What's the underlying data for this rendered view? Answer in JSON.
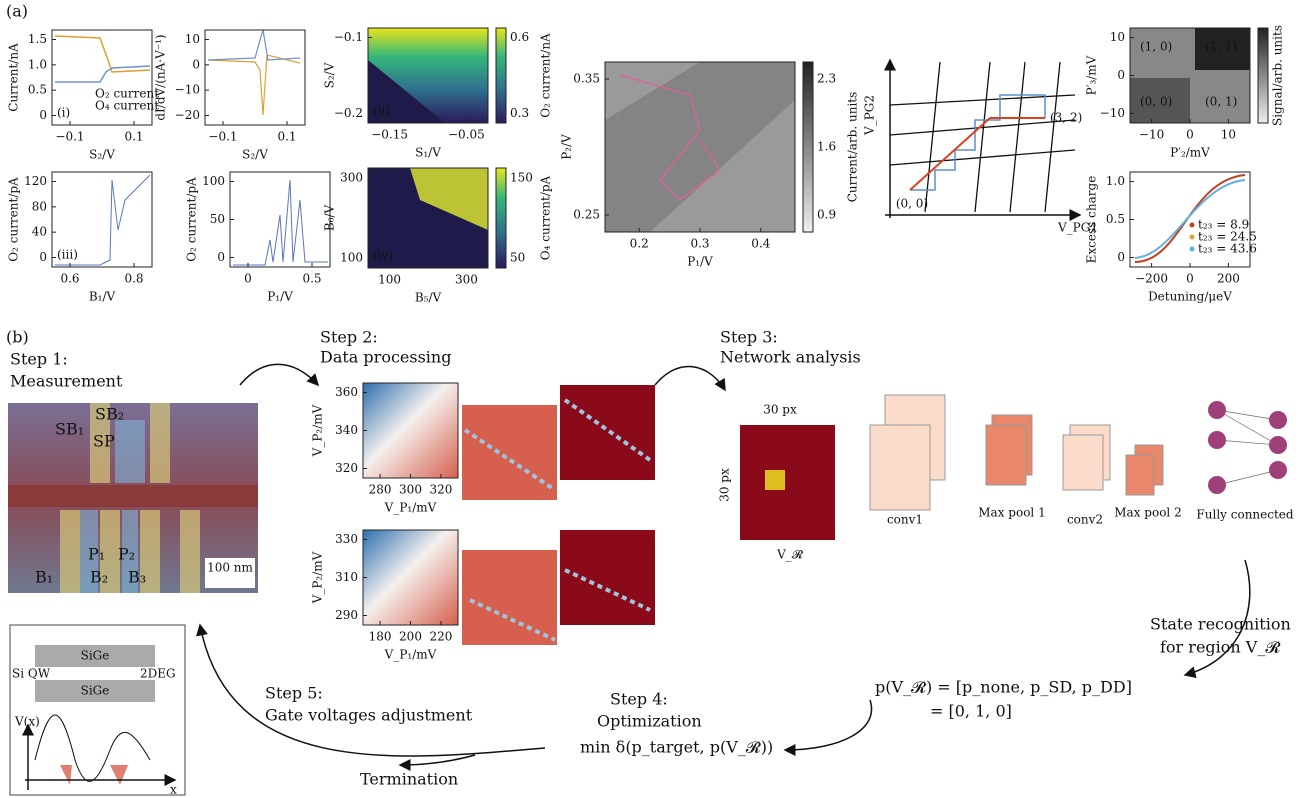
{
  "panel_labels": [
    "(a)",
    "(b)"
  ],
  "plots": [
    {
      "ylabel": "Current/nA",
      "xlabel": "S₂/V",
      "tag": "(i)",
      "xticks": [
        "−0.1",
        "0.1"
      ],
      "yticks": [
        "1.5",
        "1.0",
        "0.5",
        "0"
      ],
      "legend": [
        "O₂ current",
        "O₄ current"
      ]
    },
    {
      "ylabel": "dI/dV/(nA·V⁻¹)",
      "xlabel": "S₂/V",
      "xticks": [
        "−0.1",
        "0.1"
      ],
      "yticks": [
        "10",
        "0",
        "−10",
        "−20"
      ]
    },
    {
      "ylabel": "S₂/V",
      "xlabel": "S₁/V",
      "tag": "(ii)",
      "xticks": [
        "−0.15",
        "−0.05"
      ],
      "yticks": [
        "−0.1",
        "−0.2"
      ],
      "cbar_ticks": [
        "0.6",
        "0.3"
      ],
      "cbar_label": "O₂ current/nA"
    },
    {
      "ylabel": "O₂ current/pA",
      "xlabel": "B₁/V",
      "tag": "(iii)",
      "xticks": [
        "0.6",
        "0.8"
      ],
      "yticks": [
        "120",
        "80",
        "40",
        "0"
      ]
    },
    {
      "ylabel": "O₂ current/pA",
      "xlabel": "P₁/V",
      "xticks": [
        "0",
        "0.5"
      ],
      "yticks": [
        "100",
        "50",
        "0"
      ]
    },
    {
      "ylabel": "B₆/V",
      "xlabel": "B₅/V",
      "tag": "(iv)",
      "xticks": [
        "100",
        "300"
      ],
      "yticks": [
        "300",
        "100"
      ],
      "cbar_ticks": [
        "150",
        "50"
      ],
      "cbar_label": "O₄ current/pA"
    },
    {
      "ylabel": "P₂/V",
      "xlabel": "P₁/V",
      "xticks": [
        "0.2",
        "0.3",
        "0.4"
      ],
      "yticks": [
        "0.35",
        "0.25"
      ],
      "cbar_ticks": [
        "2.3",
        "1.6",
        "0.9"
      ],
      "cbar_label": "Current/arb. units"
    },
    {
      "ylabel": "V_PG2",
      "xlabel": "V_PG1",
      "points": [
        "(0, 0)",
        "(3, 2)"
      ]
    },
    {
      "ylabel": "P′₃/mV",
      "xlabel": "P′₂/mV",
      "xticks": [
        "−10",
        "0",
        "10"
      ],
      "yticks": [
        "10",
        "0",
        "−10"
      ],
      "states": [
        "(1, 0)",
        "(1, 1)",
        "(0, 0)",
        "(0, 1)"
      ],
      "cbar_label": "Signal/arb. units"
    },
    {
      "ylabel": "Excess charge",
      "xlabel": "Detuning/μeV",
      "xticks": [
        "−200",
        "0",
        "200"
      ],
      "yticks": [
        "1.0",
        "0.5",
        "0"
      ],
      "legend": [
        "t₂₃ = 8.9",
        "t₂₃ = 24.5",
        "t₂₃ = 43.6"
      ]
    }
  ],
  "steps": {
    "step1": [
      "Step 1:",
      "Measurement"
    ],
    "step2": [
      "Step 2:",
      "Data processing"
    ],
    "step3": [
      "Step 3:",
      "Network analysis"
    ],
    "step4": [
      "Step 4:",
      "Optimization",
      "min δ(p_target, p(V_𝓡))"
    ],
    "step5": [
      "Step 5:",
      "Gate voltages adjustment"
    ],
    "termination": "Termination",
    "recognition": [
      "State recognition",
      "for region V_𝓡"
    ],
    "probability": [
      "p(V_𝓡) = [p_none, p_SD, p_DD]",
      "= [0, 1, 0]"
    ]
  },
  "device": {
    "gates": [
      "SB₁",
      "SB₂",
      "SP",
      "P₁",
      "P₂",
      "B₁",
      "B₂",
      "B₃"
    ],
    "scale": "100 nm",
    "inset": [
      "SiGe",
      "Si QW",
      "2DEG",
      "SiGe",
      "V(x)",
      "x"
    ]
  },
  "processing": [
    {
      "ylabel": "V_P₂/mV",
      "xlabel": "V_P₁/mV",
      "yticks": [
        "360",
        "340",
        "320"
      ],
      "xticks": [
        "280",
        "300",
        "320"
      ]
    },
    {
      "ylabel": "V_P₂/mV",
      "xlabel": "V_P₁/mV",
      "yticks": [
        "330",
        "310",
        "290"
      ],
      "xticks": [
        "180",
        "200",
        "220"
      ]
    }
  ],
  "network": {
    "size": [
      "30 px",
      "30 px"
    ],
    "input": "V_𝓡",
    "layers": [
      "conv1",
      "Max pool 1",
      "conv2",
      "Max pool 2",
      "Fully connected"
    ]
  }
}
